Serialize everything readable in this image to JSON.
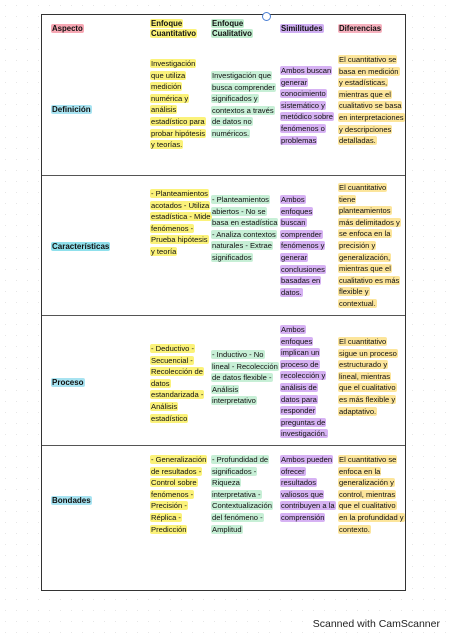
{
  "headers": {
    "aspect": "Aspecto",
    "cuantitativo": "Enfoque Cuantitativo",
    "cualitativo": "Enfoque Cualitativo",
    "similitudes": "Similitudes",
    "diferencias": "Diferencias"
  },
  "rows": [
    {
      "aspect": "Definición",
      "cuantitativo": "Investigación que utiliza medición numérica y análisis estadístico para probar hipótesis y teorías.",
      "cualitativo": "Investigación que busca comprender significados y contextos a través de datos no numéricos.",
      "similitudes": "Ambos buscan generar conocimiento sistemático y metódico sobre fenómenos o problemas",
      "diferencias": "El cuantitativo se basa en medición y estadísticas, mientras que el cualitativo se basa en interpretaciones y descripciones detalladas."
    },
    {
      "aspect": "Características",
      "cuantitativo": "- Planteamientos acotados - Utiliza estadística - Mide fenómenos - Prueba hipótesis y teoría",
      "cualitativo": "- Planteamientos abiertos - No se basa en estadística - Analiza contextos naturales - Extrae significados",
      "similitudes": "Ambos enfoques buscan comprender fenómenos y generar conclusiones basadas en datos.",
      "diferencias": "El cuantitativo tiene planteamientos más delimitados y se enfoca en la precisión y generalización, mientras que el cualitativo es más flexible y contextual."
    },
    {
      "aspect": "Proceso",
      "cuantitativo": "- Deductivo - Secuencial - Recolección de datos estandarizada - Análisis estadístico",
      "cualitativo": "- Inductivo - No lineal - Recolección de datos flexible - Análisis interpretativo",
      "similitudes": "Ambos enfoques implican un proceso de recolección y análisis de datos para responder preguntas de investigación.",
      "diferencias": "El cuantitativo sigue un proceso estructurado y lineal, mientras que el cualitativo es más flexible y adaptativo."
    },
    {
      "aspect": "Bondades",
      "cuantitativo": "- Generalización de resultados - Control sobre fenómenos - Precisión - Réplica - Predicción",
      "cualitativo": "- Profundidad de significados - Riqueza interpretativa - Contextualización del fenómeno - Amplitud",
      "similitudes": "Ambos pueden ofrecer resultados valiosos que contribuyen a la comprensión",
      "diferencias": "El cuantitativo se enfoca en la generalización y control, mientras que el cualitativo en la profundidad y contexto."
    }
  ],
  "footer": "Scanned with CamScanner",
  "colors": {
    "cuantitativo": "#fbf27a",
    "cualitativo": "#c7efd6",
    "similitudes": "#d6b2f3",
    "diferencias": "#fce59b"
  }
}
